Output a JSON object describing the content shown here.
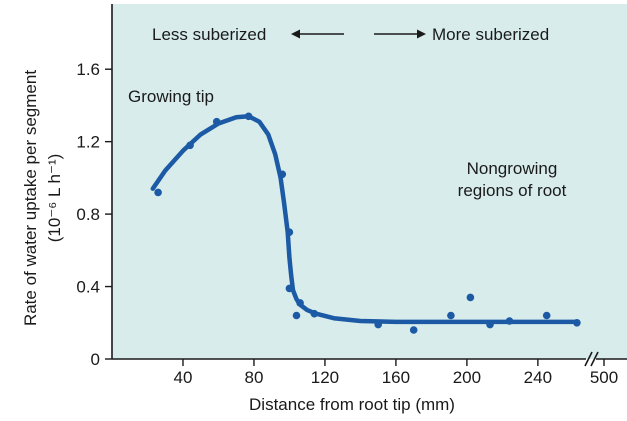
{
  "chart_data": {
    "type": "scatter",
    "title": "",
    "xlabel": "Distance from root tip (mm)",
    "ylabel_line1": "Rate of water uptake per segment",
    "ylabel_line2": "(10⁻⁶ L h⁻¹)",
    "xlim": [
      0,
      266
    ],
    "ylim": [
      0,
      1.96
    ],
    "x_ticks": [
      40,
      80,
      120,
      160,
      200,
      240
    ],
    "x_tick_labels": [
      "40",
      "80",
      "120",
      "160",
      "200",
      "240"
    ],
    "x_break_label": "500",
    "y_ticks": [
      0,
      0.4,
      0.8,
      1.2,
      1.6
    ],
    "y_tick_labels": [
      "0",
      "0.4",
      "0.8",
      "1.2",
      "1.6"
    ],
    "grid": false,
    "plot_background": "#d8ecec",
    "marker_color": "#1c5aa6",
    "curve_color": "#1c5aa6",
    "points": [
      {
        "x": 26,
        "y": 0.92
      },
      {
        "x": 44,
        "y": 1.18
      },
      {
        "x": 59,
        "y": 1.31
      },
      {
        "x": 77,
        "y": 1.34
      },
      {
        "x": 96,
        "y": 1.02
      },
      {
        "x": 100,
        "y": 0.7
      },
      {
        "x": 100,
        "y": 0.39
      },
      {
        "x": 104,
        "y": 0.24
      },
      {
        "x": 106,
        "y": 0.31
      },
      {
        "x": 114,
        "y": 0.25
      },
      {
        "x": 150,
        "y": 0.19
      },
      {
        "x": 170,
        "y": 0.16
      },
      {
        "x": 191,
        "y": 0.24
      },
      {
        "x": 202,
        "y": 0.34
      },
      {
        "x": 213,
        "y": 0.19
      },
      {
        "x": 224,
        "y": 0.21
      },
      {
        "x": 245,
        "y": 0.24
      },
      {
        "x": 262,
        "y": 0.2
      }
    ],
    "curve": [
      [
        23,
        0.94
      ],
      [
        30,
        1.04
      ],
      [
        40,
        1.15
      ],
      [
        50,
        1.24
      ],
      [
        60,
        1.3
      ],
      [
        70,
        1.335
      ],
      [
        77,
        1.34
      ],
      [
        83,
        1.31
      ],
      [
        88,
        1.24
      ],
      [
        92,
        1.13
      ],
      [
        95,
        1.0
      ],
      [
        97,
        0.86
      ],
      [
        99,
        0.7
      ],
      [
        100,
        0.56
      ],
      [
        101,
        0.46
      ],
      [
        102,
        0.38
      ],
      [
        104,
        0.33
      ],
      [
        106,
        0.3
      ],
      [
        110,
        0.27
      ],
      [
        115,
        0.25
      ],
      [
        125,
        0.225
      ],
      [
        140,
        0.21
      ],
      [
        160,
        0.205
      ],
      [
        200,
        0.205
      ],
      [
        240,
        0.205
      ],
      [
        262,
        0.205
      ]
    ],
    "annotations": {
      "less_suberized": "Less suberized",
      "more_suberized": "More suberized",
      "growing_tip": "Growing tip",
      "nongrowing_line1": "Nongrowing",
      "nongrowing_line2": "regions of root"
    }
  }
}
